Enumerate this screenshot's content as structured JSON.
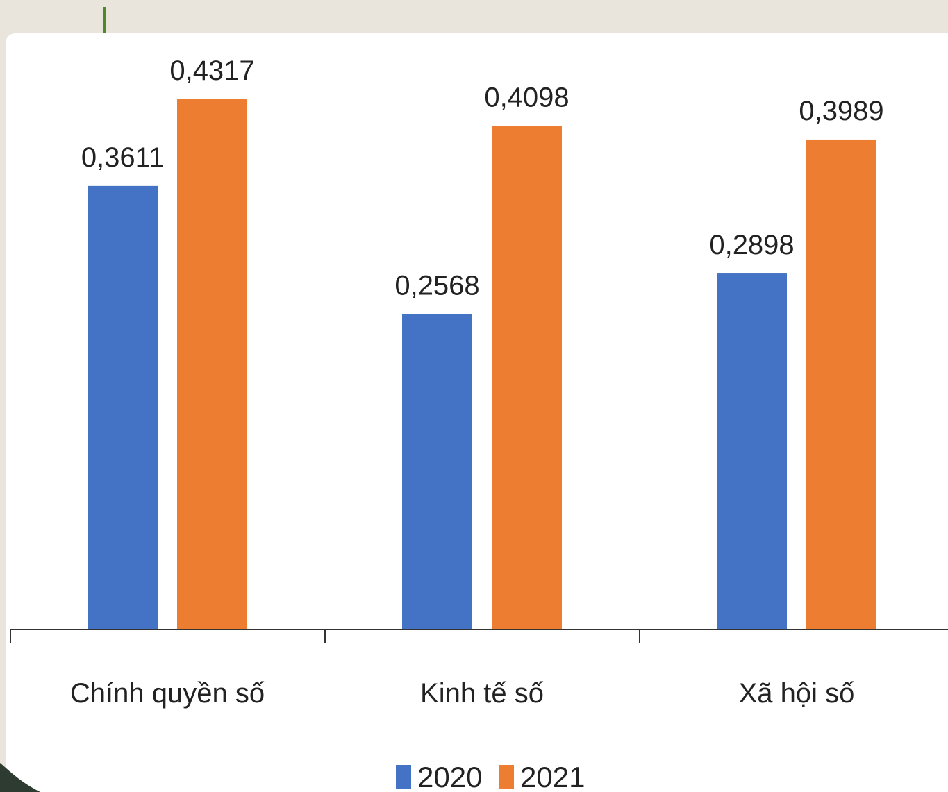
{
  "chart_data": {
    "type": "bar",
    "categories": [
      "Chính quyền số",
      "Kinh tế số",
      "Xã hội số"
    ],
    "series": [
      {
        "name": "2020",
        "color": "#4472c4",
        "values": [
          0.3611,
          0.2568,
          0.2898
        ],
        "labels": [
          "0,3611",
          "0,2568",
          "0,2898"
        ]
      },
      {
        "name": "2021",
        "color": "#ed7d31",
        "values": [
          0.4317,
          0.4098,
          0.3989
        ],
        "labels": [
          "0,4317",
          "0,4098",
          "0,3989"
        ]
      }
    ],
    "ylim": [
      0,
      0.5
    ],
    "grid": false,
    "legend_position": "bottom"
  },
  "colors": {
    "background": "#e9e5dc",
    "accent": "#4f8a2a",
    "corner": "#2e3b30"
  }
}
